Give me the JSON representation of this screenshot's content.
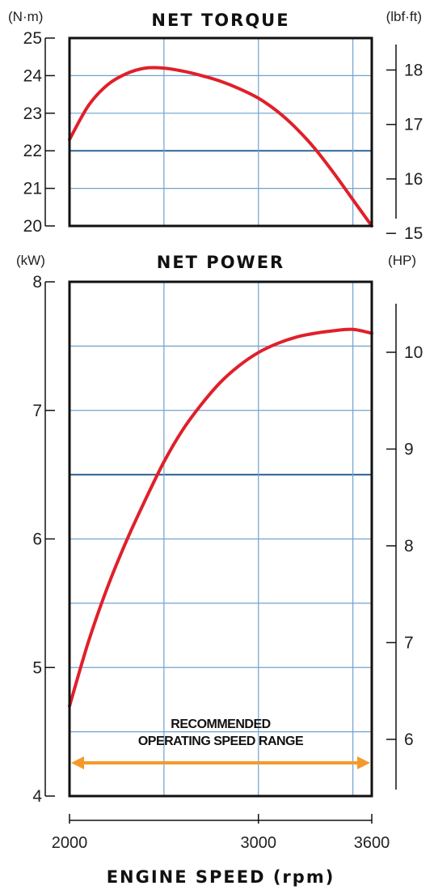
{
  "chart_data": [
    {
      "type": "line",
      "title": "NET TORQUE",
      "y_unit_left": "(N·m)",
      "y_unit_right": "(lbf·ft)",
      "ylim": [
        20,
        25
      ],
      "y_ticks": [
        20,
        21,
        22,
        23,
        24,
        25
      ],
      "y2_ticks": [
        15,
        16,
        17,
        18
      ],
      "xlim": [
        2000,
        3600
      ],
      "grid": true,
      "series": [
        {
          "color": "#e0202a",
          "x": [
            2000,
            2100,
            2200,
            2300,
            2400,
            2500,
            2600,
            2700,
            2800,
            2900,
            3000,
            3100,
            3200,
            3300,
            3400,
            3500,
            3600
          ],
          "y": [
            22.3,
            23.2,
            23.75,
            24.05,
            24.2,
            24.2,
            24.12,
            24.0,
            23.85,
            23.65,
            23.4,
            23.05,
            22.6,
            22.05,
            21.4,
            20.7,
            20.0
          ]
        }
      ]
    },
    {
      "type": "line",
      "title": "NET POWER",
      "y_unit_left": "(kW)",
      "y_unit_right": "(HP)",
      "ylim": [
        4,
        8
      ],
      "y_ticks": [
        4,
        5,
        6,
        7,
        8
      ],
      "y2_ticks": [
        6,
        7,
        8,
        9,
        10
      ],
      "xlim": [
        2000,
        3600
      ],
      "x_ticks": [
        2000,
        3000,
        3600
      ],
      "xlabel": "ENGINE SPEED (rpm)",
      "grid": true,
      "annotation": {
        "line1": "RECOMMENDED",
        "line2": "OPERATING SPEED RANGE",
        "range": [
          2000,
          3600
        ],
        "color": "#f39a2b"
      },
      "series": [
        {
          "color": "#e0202a",
          "x": [
            2000,
            2100,
            2200,
            2300,
            2400,
            2500,
            2600,
            2700,
            2800,
            2900,
            3000,
            3100,
            3200,
            3300,
            3400,
            3500,
            3600
          ],
          "y": [
            4.7,
            5.2,
            5.62,
            5.98,
            6.3,
            6.6,
            6.85,
            7.05,
            7.22,
            7.35,
            7.45,
            7.52,
            7.57,
            7.6,
            7.62,
            7.63,
            7.6
          ]
        }
      ]
    }
  ]
}
